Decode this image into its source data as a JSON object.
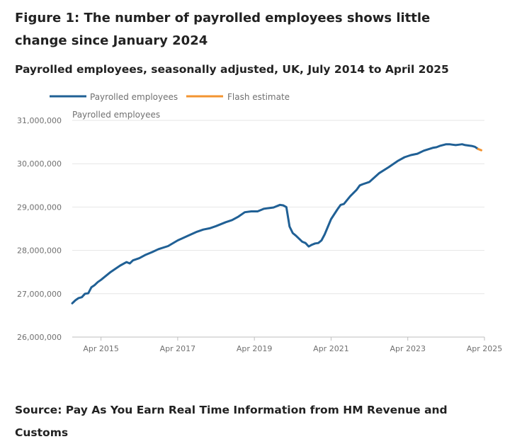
{
  "title": "Figure 1: The number of payrolled employees shows little change since January 2024",
  "subtitle": "Payrolled employees, seasonally adjusted, UK, July 2014 to April 2025",
  "source": "Source: Pay As You Earn Real Time Information from HM Revenue and Customs",
  "colors": {
    "main": "#206095",
    "flash": "#f39431",
    "grid": "#e6e6e6",
    "axis": "#bebebe",
    "text": "#707070"
  },
  "chart_data": {
    "type": "line",
    "ylabel": "Payrolled employees",
    "xlabel": "",
    "ylim": [
      26000000,
      31000000
    ],
    "yticks": [
      26000000,
      27000000,
      28000000,
      29000000,
      30000000,
      31000000
    ],
    "ytick_labels": [
      "26,000,000",
      "27,000,000",
      "28,000,000",
      "29,000,000",
      "30,000,000",
      "31,000,000"
    ],
    "xlim": [
      2014.5,
      2025.25
    ],
    "xticks": [
      2015.25,
      2017.25,
      2019.25,
      2021.25,
      2023.25,
      2025.25
    ],
    "xtick_labels": [
      "Apr 2015",
      "Apr 2017",
      "Apr 2019",
      "Apr 2021",
      "Apr 2023",
      "Apr 2025"
    ],
    "legend": [
      "Payrolled employees",
      "Flash estimate"
    ],
    "legend_position": "top-left",
    "series": [
      {
        "name": "Payrolled employees",
        "x": [
          2014.5,
          2014.583,
          2014.667,
          2014.75,
          2014.833,
          2014.917,
          2015.0,
          2015.083,
          2015.167,
          2015.25,
          2015.5,
          2015.75,
          2015.917,
          2016.0,
          2016.083,
          2016.25,
          2016.417,
          2016.583,
          2016.75,
          2017.0,
          2017.25,
          2017.5,
          2017.75,
          2017.917,
          2018.083,
          2018.25,
          2018.5,
          2018.667,
          2018.833,
          2019.0,
          2019.167,
          2019.333,
          2019.5,
          2019.583,
          2019.75,
          2019.917,
          2020.0,
          2020.083,
          2020.167,
          2020.25,
          2020.333,
          2020.5,
          2020.583,
          2020.667,
          2020.75,
          2020.833,
          2020.917,
          2021.0,
          2021.083,
          2021.25,
          2021.417,
          2021.5,
          2021.583,
          2021.75,
          2021.917,
          2022.0,
          2022.083,
          2022.25,
          2022.5,
          2022.75,
          2023.0,
          2023.167,
          2023.333,
          2023.5,
          2023.667,
          2023.917,
          2024.0,
          2024.083,
          2024.25,
          2024.333,
          2024.417,
          2024.5,
          2024.583,
          2024.667,
          2024.75,
          2024.833,
          2024.917,
          2025.0,
          2025.083
        ],
        "values": [
          26780000,
          26850000,
          26900000,
          26920000,
          27000000,
          27010000,
          27150000,
          27200000,
          27270000,
          27320000,
          27500000,
          27650000,
          27730000,
          27700000,
          27770000,
          27820000,
          27900000,
          27960000,
          28030000,
          28100000,
          28230000,
          28330000,
          28430000,
          28480000,
          28510000,
          28560000,
          28650000,
          28700000,
          28780000,
          28880000,
          28900000,
          28900000,
          28960000,
          28970000,
          28990000,
          29050000,
          29040000,
          29000000,
          28550000,
          28400000,
          28340000,
          28200000,
          28170000,
          28090000,
          28130000,
          28160000,
          28170000,
          28230000,
          28370000,
          28720000,
          28950000,
          29050000,
          29070000,
          29250000,
          29400000,
          29500000,
          29530000,
          29580000,
          29780000,
          29920000,
          30070000,
          30150000,
          30200000,
          30230000,
          30300000,
          30370000,
          30380000,
          30410000,
          30450000,
          30450000,
          30440000,
          30430000,
          30440000,
          30450000,
          30430000,
          30420000,
          30410000,
          30390000,
          30340000
        ]
      },
      {
        "name": "Flash estimate",
        "x": [
          2025.083,
          2025.167
        ],
        "values": [
          30340000,
          30310000
        ]
      }
    ]
  }
}
